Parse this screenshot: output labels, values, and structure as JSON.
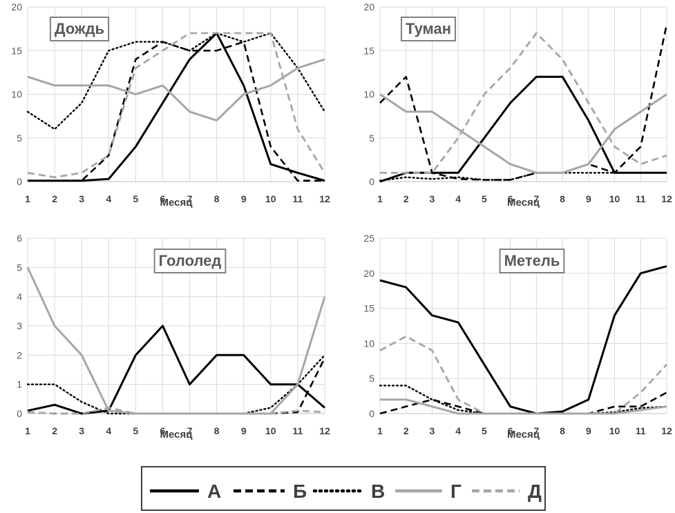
{
  "chart_data": [
    {
      "type": "line",
      "title": "Дождь",
      "xlabel": "Месяц",
      "ylabel": "",
      "x": [
        1,
        2,
        3,
        4,
        5,
        6,
        7,
        8,
        9,
        10,
        11,
        12
      ],
      "ylim": [
        0,
        20
      ],
      "yticks": [
        0,
        5,
        10,
        15,
        20
      ],
      "grid": true,
      "series": [
        {
          "name": "А",
          "values": [
            0.1,
            0.1,
            0.1,
            0.3,
            4,
            9,
            14,
            17,
            11,
            2,
            1,
            0.1
          ]
        },
        {
          "name": "Б",
          "values": [
            0.1,
            0.1,
            0.1,
            3,
            14,
            16,
            15,
            15,
            16,
            4,
            0.1,
            0.1
          ]
        },
        {
          "name": "В",
          "values": [
            8,
            6,
            9,
            15,
            16,
            16,
            15,
            17,
            16,
            17,
            13,
            8
          ]
        },
        {
          "name": "Г",
          "values": [
            12,
            11,
            11,
            11,
            10,
            11,
            8,
            7,
            10,
            11,
            13,
            14
          ]
        },
        {
          "name": "Д",
          "values": [
            1,
            0.5,
            1,
            3,
            13,
            15,
            17,
            17,
            17,
            17,
            6,
            1
          ]
        }
      ]
    },
    {
      "type": "line",
      "title": "Туман",
      "xlabel": "Месяц",
      "ylabel": "",
      "x": [
        1,
        2,
        3,
        4,
        5,
        6,
        7,
        8,
        9,
        10,
        11,
        12
      ],
      "ylim": [
        0,
        20
      ],
      "yticks": [
        0,
        5,
        10,
        15,
        20
      ],
      "grid": true,
      "series": [
        {
          "name": "А",
          "values": [
            0,
            1,
            1,
            1,
            5,
            9,
            12,
            12,
            7,
            1,
            1,
            1
          ]
        },
        {
          "name": "Б",
          "values": [
            9,
            12,
            1,
            0.3,
            0.2,
            0.2,
            1,
            1,
            2,
            1,
            4,
            18
          ]
        },
        {
          "name": "В",
          "values": [
            0.1,
            0.5,
            0.3,
            0.5,
            0.2,
            0.2,
            1,
            1,
            1,
            1,
            1,
            1
          ]
        },
        {
          "name": "Г",
          "values": [
            10,
            8,
            8,
            6,
            4,
            2,
            1,
            1,
            2,
            6,
            8,
            10
          ]
        },
        {
          "name": "Д",
          "values": [
            1,
            1,
            1,
            5,
            10,
            13,
            17,
            14,
            9,
            4,
            2,
            3
          ]
        }
      ]
    },
    {
      "type": "line",
      "title": "Гололед",
      "xlabel": "Месяц",
      "ylabel": "",
      "x": [
        1,
        2,
        3,
        4,
        5,
        6,
        7,
        8,
        9,
        10,
        11,
        12
      ],
      "ylim": [
        0,
        6
      ],
      "yticks": [
        0,
        1,
        2,
        3,
        4,
        5,
        6
      ],
      "grid": true,
      "series": [
        {
          "name": "А",
          "values": [
            0.1,
            0.3,
            0,
            0.1,
            2,
            3,
            1,
            2,
            2,
            1,
            1,
            0.2
          ]
        },
        {
          "name": "Б",
          "values": [
            0.05,
            0,
            0,
            0.1,
            0,
            0,
            0,
            0,
            0,
            0,
            0.05,
            1.9
          ]
        },
        {
          "name": "В",
          "values": [
            1,
            1,
            0.4,
            0,
            0,
            0,
            0,
            0,
            0,
            0.2,
            1,
            2
          ]
        },
        {
          "name": "Г",
          "values": [
            5,
            3,
            2,
            0.1,
            0,
            0,
            0,
            0,
            0,
            0,
            1,
            4
          ]
        },
        {
          "name": "Д",
          "values": [
            0.05,
            0,
            0,
            0.2,
            0,
            0,
            0,
            0,
            0,
            0,
            0.1,
            0.05
          ]
        }
      ]
    },
    {
      "type": "line",
      "title": "Метель",
      "xlabel": "Месяц",
      "ylabel": "",
      "x": [
        1,
        2,
        3,
        4,
        5,
        6,
        7,
        8,
        9,
        10,
        11,
        12
      ],
      "ylim": [
        0,
        25
      ],
      "yticks": [
        0,
        5,
        10,
        15,
        20,
        25
      ],
      "grid": true,
      "series": [
        {
          "name": "А",
          "values": [
            19,
            18,
            14,
            13,
            7,
            1,
            0,
            0.3,
            2,
            14,
            20,
            21
          ]
        },
        {
          "name": "Б",
          "values": [
            0,
            1,
            2,
            1,
            0,
            0,
            0,
            0,
            0,
            1,
            1,
            3
          ]
        },
        {
          "name": "В",
          "values": [
            4,
            4,
            2,
            0.5,
            0,
            0,
            0,
            0,
            0,
            0.2,
            0.8,
            1
          ]
        },
        {
          "name": "Г",
          "values": [
            2,
            2,
            1,
            0,
            0,
            0,
            0,
            0,
            0,
            0,
            0.5,
            1
          ]
        },
        {
          "name": "Д",
          "values": [
            9,
            11,
            9,
            2,
            0,
            0,
            0,
            0,
            0,
            0,
            3,
            7
          ]
        }
      ]
    }
  ],
  "legend": {
    "placement": "bottom-center",
    "entries": [
      "А",
      "Б",
      "В",
      "Г",
      "Д"
    ]
  },
  "styles": {
    "А": {
      "color": "#000000",
      "dash": "solid"
    },
    "Б": {
      "color": "#000000",
      "dash": "dashed"
    },
    "В": {
      "color": "#000000",
      "dash": "dotted"
    },
    "Г": {
      "color": "#a6a6a6",
      "dash": "solid"
    },
    "Д": {
      "color": "#a6a6a6",
      "dash": "dashed"
    }
  }
}
